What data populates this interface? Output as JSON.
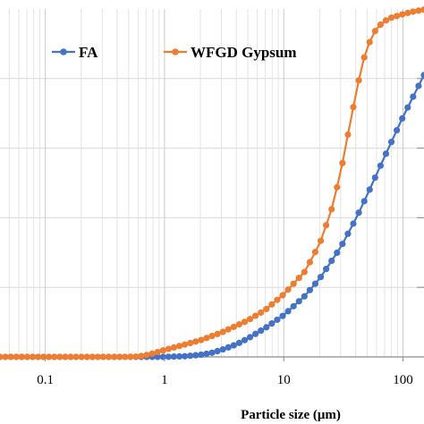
{
  "chart_data": {
    "type": "line",
    "x_scale": "log",
    "xlim": [
      0.0417,
      150
    ],
    "ylim": [
      0,
      100
    ],
    "y_step": 20,
    "grid": "major and minor vertical, major horizontal",
    "xlabel": "Particle size (μm)",
    "ylabel": "",
    "title": "",
    "x_ticks": [
      {
        "value": 0.1,
        "label": "0.1"
      },
      {
        "value": 1,
        "label": "1"
      },
      {
        "value": 10,
        "label": "10"
      },
      {
        "value": 100,
        "label": "100"
      }
    ],
    "legend_position": "top",
    "series": [
      {
        "name": "FA",
        "color": "#4472C4",
        "x": [
          0.0417,
          0.05,
          0.06,
          0.07,
          0.08,
          0.1,
          0.15,
          0.2,
          0.3,
          0.5,
          0.8,
          1.0,
          1.2,
          1.5,
          2.0,
          2.5,
          3.0,
          4.0,
          5.0,
          7.0,
          10,
          15,
          20,
          30,
          40,
          50,
          70,
          100,
          150
        ],
        "y": [
          0,
          0,
          0,
          0,
          0,
          0,
          0,
          0,
          0,
          0,
          0,
          0,
          0.1,
          0.2,
          0.6,
          1.2,
          2.0,
          3.6,
          5.3,
          8.3,
          12.0,
          17.5,
          22.5,
          31.5,
          39.5,
          46.5,
          57.5,
          69.0,
          81.0
        ]
      },
      {
        "name": "WFGD Gypsum",
        "color": "#ED7D31",
        "x": [
          0.0417,
          0.05,
          0.06,
          0.07,
          0.08,
          0.1,
          0.15,
          0.2,
          0.3,
          0.45,
          0.6,
          0.7,
          0.8,
          1.0,
          1.5,
          2.0,
          3.0,
          5.0,
          7.0,
          10,
          15,
          20,
          25,
          30,
          35,
          40,
          45,
          50,
          60,
          70,
          80,
          100,
          120,
          150
        ],
        "y": [
          0,
          0,
          0,
          0,
          0,
          0,
          0,
          0,
          0,
          0,
          0.1,
          0.5,
          1.0,
          2.0,
          3.6,
          4.8,
          7.0,
          10.5,
          13.5,
          18.0,
          24.5,
          32.5,
          42.0,
          53.0,
          65.0,
          75.0,
          83.5,
          89.0,
          94.5,
          96.5,
          97.5,
          98.5,
          99.2,
          99.8
        ]
      }
    ]
  }
}
